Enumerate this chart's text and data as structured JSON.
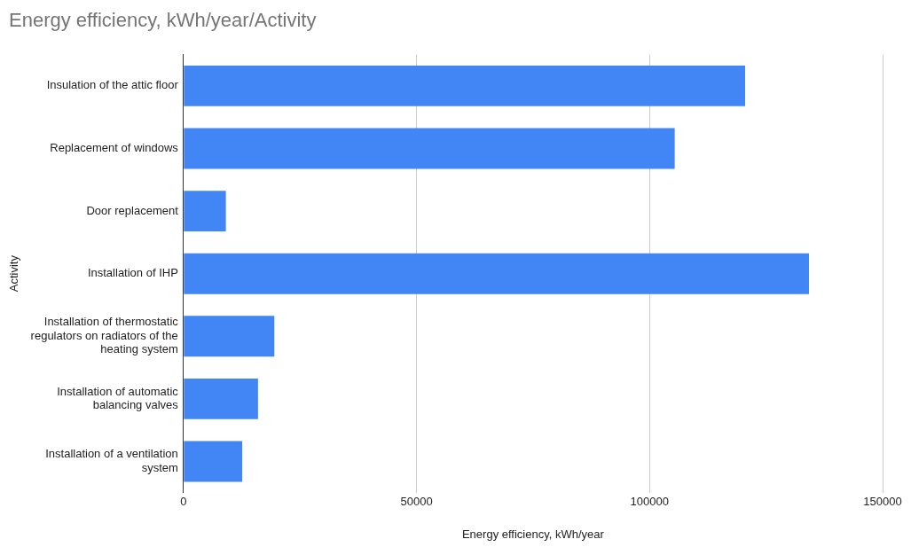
{
  "chart_data": {
    "type": "bar",
    "orientation": "horizontal",
    "title": "Energy efficiency, kWh/year/Activity",
    "xlabel": "Energy efficiency, kWh/year",
    "ylabel": "Activity",
    "categories": [
      "Insulation of the attic floor",
      "Replacement of windows",
      "Door replacement",
      "Installation of IHP",
      "Installation of thermostatic regulators on radiators of the heating system",
      "Installation of automatic balancing valves",
      "Installation of a ventilation system"
    ],
    "values": [
      120500,
      105400,
      9100,
      134200,
      19500,
      16000,
      12600
    ],
    "color": "#4285f4",
    "xlim": [
      0,
      150000
    ],
    "xticks": [
      0,
      50000,
      100000,
      150000
    ],
    "grid": "x",
    "legend": false
  }
}
